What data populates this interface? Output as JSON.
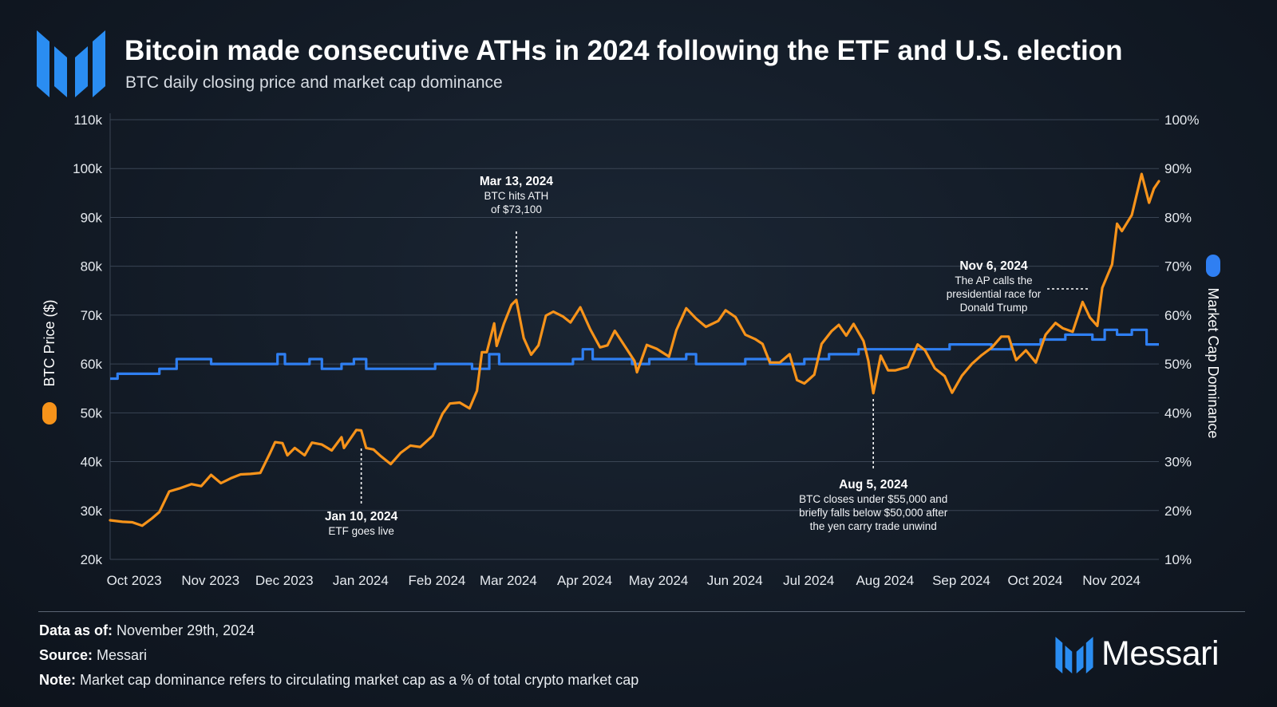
{
  "header": {
    "title": "Bitcoin made consecutive ATHs in 2024 following the ETF and U.S. election",
    "subtitle": "BTC daily closing price and market cap dominance"
  },
  "footer": {
    "data_as_of_label": "Data as of:",
    "data_as_of_value": "November 29th, 2024",
    "source_label": "Source:",
    "source_value": "Messari",
    "note_label": "Note:",
    "note_value": "Market cap dominance refers to circulating market cap as a % of total crypto market cap",
    "brand_name": "Messari"
  },
  "colors": {
    "price": "#f7931a",
    "dominance": "#2f7ff2",
    "logo": "#2a8df2",
    "grid": "#3a4554",
    "text": "#ffffff"
  },
  "chart_data": {
    "type": "line",
    "title": "Bitcoin made consecutive ATHs in 2024 following the ETF and U.S. election",
    "subtitle": "BTC daily closing price and market cap dominance",
    "x_type": "date",
    "x_range": [
      "2023-09-30",
      "2024-11-29"
    ],
    "x_tick_labels": [
      {
        "date": "2023-10-01",
        "label": "Oct 2023"
      },
      {
        "date": "2023-11-01",
        "label": "Nov 2023"
      },
      {
        "date": "2023-12-01",
        "label": "Dec 2023"
      },
      {
        "date": "2024-01-01",
        "label": "Jan 2024"
      },
      {
        "date": "2024-02-01",
        "label": "Feb 2024"
      },
      {
        "date": "2024-03-01",
        "label": "Mar 2024"
      },
      {
        "date": "2024-04-01",
        "label": "Apr 2024"
      },
      {
        "date": "2024-05-01",
        "label": "May 2024"
      },
      {
        "date": "2024-06-01",
        "label": "Jun 2024"
      },
      {
        "date": "2024-07-01",
        "label": "Jul 2024"
      },
      {
        "date": "2024-08-01",
        "label": "Aug 2024"
      },
      {
        "date": "2024-09-01",
        "label": "Sep 2024"
      },
      {
        "date": "2024-10-01",
        "label": "Oct 2024"
      },
      {
        "date": "2024-11-01",
        "label": "Nov 2024"
      }
    ],
    "y_left": {
      "label": "BTC Price ($)",
      "range": [
        20000,
        110000
      ],
      "ticks": [
        20000,
        30000,
        40000,
        50000,
        60000,
        70000,
        80000,
        90000,
        100000,
        110000
      ],
      "tick_labels": [
        "20k",
        "30k",
        "40k",
        "50k",
        "60k",
        "70k",
        "80k",
        "90k",
        "100k",
        "110k"
      ]
    },
    "y_right": {
      "label": "Market Cap Dominance",
      "range": [
        10,
        100
      ],
      "ticks": [
        10,
        20,
        30,
        40,
        50,
        60,
        70,
        80,
        90,
        100
      ],
      "tick_labels": [
        "10%",
        "20%",
        "30%",
        "40%",
        "50%",
        "60%",
        "70%",
        "80%",
        "90%",
        "100%"
      ]
    },
    "grid": "horizontal",
    "series": [
      {
        "name": "BTC Price ($)",
        "axis": "left",
        "points": [
          [
            "2023-09-30",
            28000
          ],
          [
            "2023-10-05",
            27700
          ],
          [
            "2023-10-09",
            27600
          ],
          [
            "2023-10-13",
            26900
          ],
          [
            "2023-10-17",
            28400
          ],
          [
            "2023-10-20",
            29700
          ],
          [
            "2023-10-24",
            33900
          ],
          [
            "2023-10-28",
            34500
          ],
          [
            "2023-11-02",
            35400
          ],
          [
            "2023-11-06",
            35000
          ],
          [
            "2023-11-10",
            37300
          ],
          [
            "2023-11-14",
            35600
          ],
          [
            "2023-11-18",
            36600
          ],
          [
            "2023-11-22",
            37400
          ],
          [
            "2023-11-26",
            37500
          ],
          [
            "2023-11-30",
            37700
          ],
          [
            "2023-12-04",
            41800
          ],
          [
            "2023-12-06",
            44000
          ],
          [
            "2023-12-09",
            43800
          ],
          [
            "2023-12-11",
            41300
          ],
          [
            "2023-12-14",
            42800
          ],
          [
            "2023-12-18",
            41300
          ],
          [
            "2023-12-21",
            43900
          ],
          [
            "2023-12-25",
            43500
          ],
          [
            "2023-12-29",
            42300
          ],
          [
            "2024-01-02",
            45000
          ],
          [
            "2024-01-03",
            42800
          ],
          [
            "2024-01-08",
            46500
          ],
          [
            "2024-01-10",
            46400
          ],
          [
            "2024-01-12",
            42800
          ],
          [
            "2024-01-15",
            42500
          ],
          [
            "2024-01-18",
            41100
          ],
          [
            "2024-01-22",
            39500
          ],
          [
            "2024-01-26",
            41800
          ],
          [
            "2024-01-30",
            43300
          ],
          [
            "2024-02-03",
            43000
          ],
          [
            "2024-02-08",
            45300
          ],
          [
            "2024-02-12",
            49800
          ],
          [
            "2024-02-15",
            51900
          ],
          [
            "2024-02-19",
            52100
          ],
          [
            "2024-02-23",
            50900
          ],
          [
            "2024-02-26",
            54500
          ],
          [
            "2024-02-28",
            62400
          ],
          [
            "2024-03-01",
            62400
          ],
          [
            "2024-03-04",
            68300
          ],
          [
            "2024-03-05",
            63700
          ],
          [
            "2024-03-08",
            68300
          ],
          [
            "2024-03-11",
            72100
          ],
          [
            "2024-03-13",
            73100
          ],
          [
            "2024-03-16",
            65300
          ],
          [
            "2024-03-19",
            61900
          ],
          [
            "2024-03-22",
            63800
          ],
          [
            "2024-03-25",
            69900
          ],
          [
            "2024-03-28",
            70700
          ],
          [
            "2024-04-01",
            69700
          ],
          [
            "2024-04-04",
            68500
          ],
          [
            "2024-04-08",
            71600
          ],
          [
            "2024-04-12",
            67100
          ],
          [
            "2024-04-16",
            63400
          ],
          [
            "2024-04-19",
            63800
          ],
          [
            "2024-04-22",
            66800
          ],
          [
            "2024-04-26",
            63700
          ],
          [
            "2024-04-30",
            60600
          ],
          [
            "2024-05-01",
            58300
          ],
          [
            "2024-05-05",
            63900
          ],
          [
            "2024-05-09",
            63100
          ],
          [
            "2024-05-14",
            61500
          ],
          [
            "2024-05-17",
            66900
          ],
          [
            "2024-05-21",
            71400
          ],
          [
            "2024-05-25",
            69300
          ],
          [
            "2024-05-29",
            67600
          ],
          [
            "2024-06-03",
            68800
          ],
          [
            "2024-06-06",
            71000
          ],
          [
            "2024-06-10",
            69600
          ],
          [
            "2024-06-14",
            66000
          ],
          [
            "2024-06-18",
            65100
          ],
          [
            "2024-06-21",
            64100
          ],
          [
            "2024-06-24",
            60300
          ],
          [
            "2024-06-28",
            60300
          ],
          [
            "2024-07-02",
            62000
          ],
          [
            "2024-07-05",
            56700
          ],
          [
            "2024-07-08",
            56000
          ],
          [
            "2024-07-12",
            57800
          ],
          [
            "2024-07-15",
            64100
          ],
          [
            "2024-07-19",
            66700
          ],
          [
            "2024-07-22",
            68000
          ],
          [
            "2024-07-25",
            65800
          ],
          [
            "2024-07-28",
            68200
          ],
          [
            "2024-08-01",
            64700
          ],
          [
            "2024-08-03",
            60600
          ],
          [
            "2024-08-05",
            54000
          ],
          [
            "2024-08-08",
            61700
          ],
          [
            "2024-08-11",
            58700
          ],
          [
            "2024-08-14",
            58700
          ],
          [
            "2024-08-19",
            59400
          ],
          [
            "2024-08-23",
            64000
          ],
          [
            "2024-08-26",
            62800
          ],
          [
            "2024-08-30",
            59100
          ],
          [
            "2024-09-03",
            57500
          ],
          [
            "2024-09-06",
            54100
          ],
          [
            "2024-09-10",
            57600
          ],
          [
            "2024-09-14",
            60000
          ],
          [
            "2024-09-18",
            61800
          ],
          [
            "2024-09-22",
            63300
          ],
          [
            "2024-09-26",
            65600
          ],
          [
            "2024-09-29",
            65600
          ],
          [
            "2024-10-02",
            60800
          ],
          [
            "2024-10-06",
            62800
          ],
          [
            "2024-10-10",
            60300
          ],
          [
            "2024-10-14",
            66000
          ],
          [
            "2024-10-18",
            68400
          ],
          [
            "2024-10-21",
            67300
          ],
          [
            "2024-10-25",
            66600
          ],
          [
            "2024-10-29",
            72700
          ],
          [
            "2024-11-01",
            69500
          ],
          [
            "2024-11-04",
            67800
          ],
          [
            "2024-11-06",
            75600
          ],
          [
            "2024-11-10",
            80400
          ],
          [
            "2024-11-12",
            88700
          ],
          [
            "2024-11-14",
            87200
          ],
          [
            "2024-11-18",
            90500
          ],
          [
            "2024-11-22",
            98900
          ],
          [
            "2024-11-25",
            93000
          ],
          [
            "2024-11-27",
            95900
          ],
          [
            "2024-11-29",
            97400
          ]
        ]
      },
      {
        "name": "Market Cap Dominance",
        "axis": "right",
        "points": [
          [
            "2023-09-30",
            47
          ],
          [
            "2023-10-03",
            48
          ],
          [
            "2023-10-20",
            49
          ],
          [
            "2023-10-27",
            51
          ],
          [
            "2023-11-10",
            50
          ],
          [
            "2023-11-15",
            50
          ],
          [
            "2023-12-01",
            50
          ],
          [
            "2023-12-07",
            52
          ],
          [
            "2023-12-10",
            50
          ],
          [
            "2023-12-20",
            51
          ],
          [
            "2023-12-25",
            49
          ],
          [
            "2024-01-02",
            50
          ],
          [
            "2024-01-07",
            51
          ],
          [
            "2024-01-12",
            49
          ],
          [
            "2024-02-01",
            49
          ],
          [
            "2024-02-09",
            50
          ],
          [
            "2024-02-21",
            50
          ],
          [
            "2024-02-24",
            49
          ],
          [
            "2024-02-29",
            49
          ],
          [
            "2024-03-02",
            52
          ],
          [
            "2024-03-06",
            50
          ],
          [
            "2024-04-01",
            50
          ],
          [
            "2024-04-05",
            51
          ],
          [
            "2024-04-09",
            53
          ],
          [
            "2024-04-13",
            51
          ],
          [
            "2024-04-22",
            51
          ],
          [
            "2024-04-29",
            50
          ],
          [
            "2024-05-06",
            51
          ],
          [
            "2024-05-16",
            51
          ],
          [
            "2024-05-21",
            52
          ],
          [
            "2024-05-25",
            50
          ],
          [
            "2024-06-14",
            51
          ],
          [
            "2024-06-24",
            50
          ],
          [
            "2024-07-08",
            51
          ],
          [
            "2024-07-18",
            52
          ],
          [
            "2024-07-25",
            52
          ],
          [
            "2024-07-30",
            53
          ],
          [
            "2024-09-01",
            53
          ],
          [
            "2024-09-05",
            54
          ],
          [
            "2024-09-22",
            53
          ],
          [
            "2024-09-30",
            54
          ],
          [
            "2024-10-10",
            54
          ],
          [
            "2024-10-12",
            55
          ],
          [
            "2024-10-20",
            55
          ],
          [
            "2024-10-22",
            56
          ],
          [
            "2024-11-02",
            55
          ],
          [
            "2024-11-07",
            57
          ],
          [
            "2024-11-12",
            56
          ],
          [
            "2024-11-18",
            57
          ],
          [
            "2024-11-24",
            54
          ],
          [
            "2024-11-29",
            54
          ]
        ]
      }
    ],
    "annotations": [
      {
        "date": "2024-01-10",
        "title": "Jan 10, 2024",
        "lines": [
          "ETF goes live"
        ]
      },
      {
        "date": "2024-03-13",
        "title": "Mar 13, 2024",
        "lines": [
          "BTC hits ATH",
          "of $73,100"
        ]
      },
      {
        "date": "2024-08-05",
        "title": "Aug 5, 2024",
        "lines": [
          "BTC closes under $55,000 and",
          "briefly falls below $50,000 after",
          "the yen carry trade unwind"
        ]
      },
      {
        "date": "2024-11-06",
        "title": "Nov 6, 2024",
        "lines": [
          "The AP calls the",
          "presidential race for",
          "Donald Trump"
        ]
      }
    ]
  }
}
